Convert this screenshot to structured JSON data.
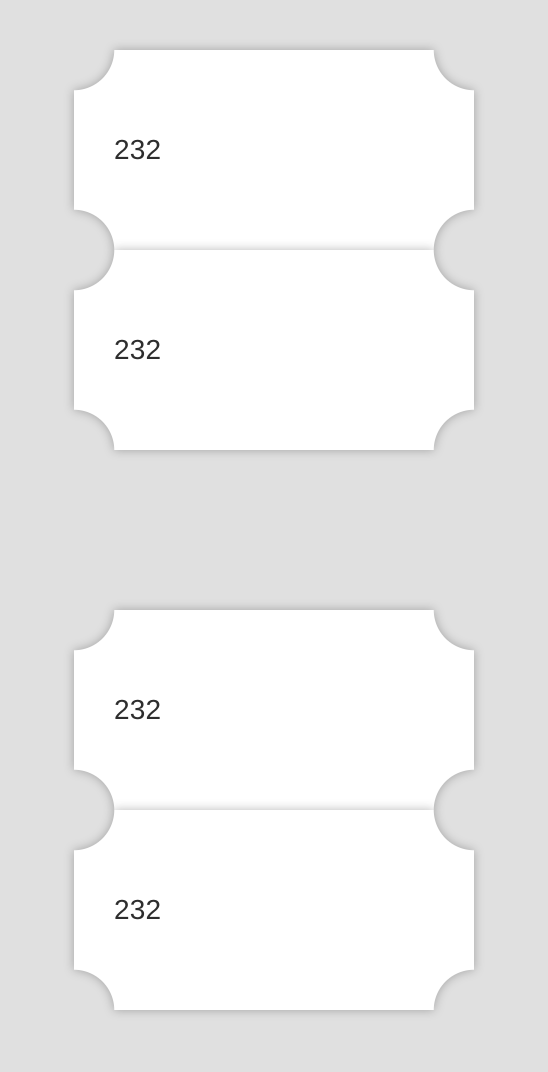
{
  "tickets": [
    {
      "top_number": "232",
      "bottom_number": "232"
    },
    {
      "top_number": "232",
      "bottom_number": "232"
    }
  ],
  "colors": {
    "background": "#e0e0e0",
    "ticket": "#ffffff",
    "text": "#2e2e2e"
  }
}
